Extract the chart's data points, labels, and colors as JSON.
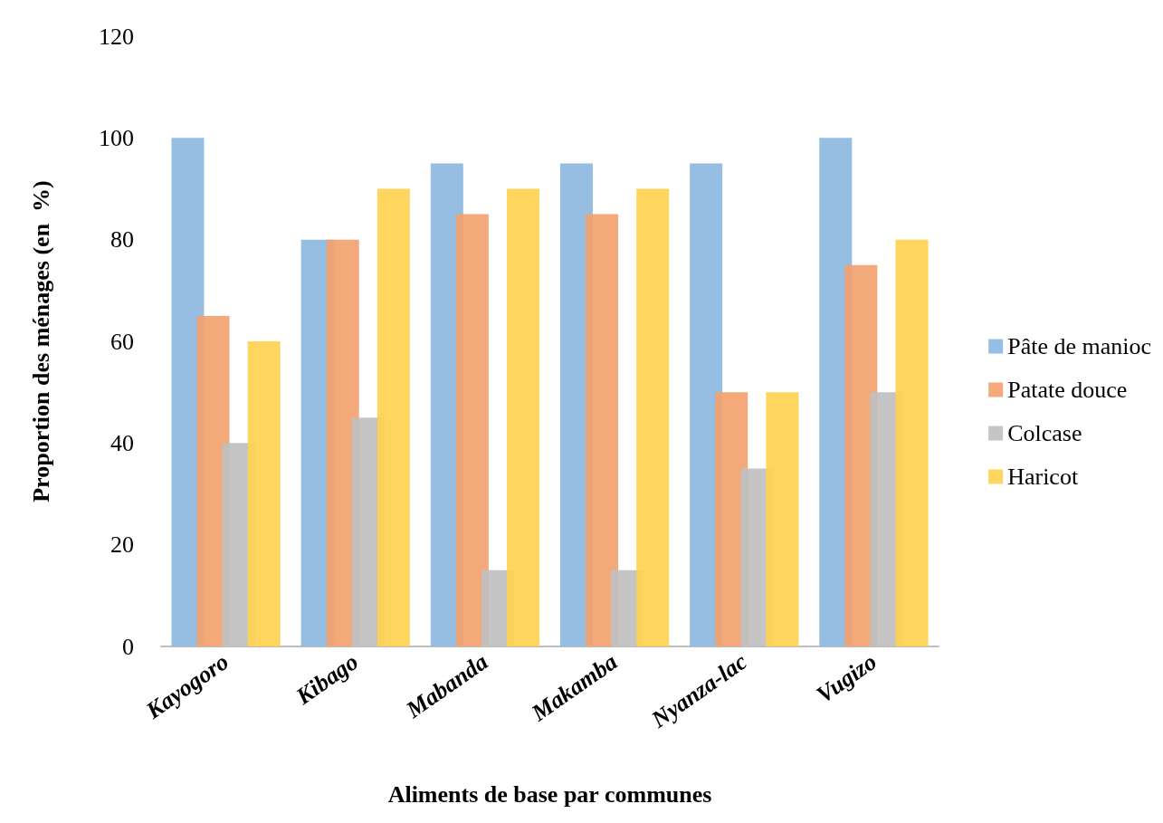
{
  "chart_data": {
    "type": "bar",
    "xlabel": "Aliments de base par communes",
    "ylabel": "Proportion des ménages (en  %)",
    "categories": [
      "Kayogoro",
      "Kibago",
      "Mabanda",
      "Makamba",
      "Nyanza-lac",
      "Vugizo"
    ],
    "series": [
      {
        "name": "Pâte de manioc",
        "color": "#8db8e0",
        "values": [
          100,
          80,
          95,
          95,
          95,
          100
        ]
      },
      {
        "name": "Patate douce",
        "color": "#f2a26e",
        "values": [
          65,
          80,
          85,
          85,
          50,
          75
        ]
      },
      {
        "name": "Colcase",
        "color": "#c0c0c0",
        "values": [
          40,
          45,
          15,
          15,
          35,
          50
        ]
      },
      {
        "name": "Haricot",
        "color": "#fed150",
        "values": [
          60,
          90,
          90,
          90,
          50,
          80
        ]
      }
    ],
    "ylim": [
      0,
      120
    ],
    "yticks": [
      0,
      20,
      40,
      60,
      80,
      100,
      120
    ],
    "grid": false,
    "legend": "right"
  }
}
